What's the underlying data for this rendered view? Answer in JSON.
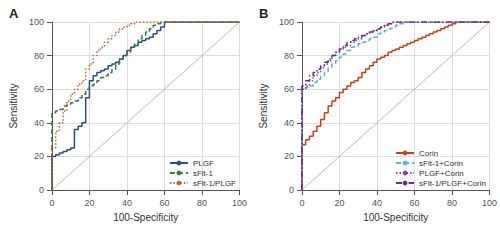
{
  "chart_data": [
    {
      "type": "step",
      "title": "A",
      "xlabel": "100-Specificity",
      "ylabel": "Sensitivity",
      "xlim": [
        0,
        100
      ],
      "ylim": [
        0,
        100
      ],
      "xticks": [
        0,
        20,
        40,
        60,
        80,
        100
      ],
      "yticks": [
        0,
        20,
        40,
        60,
        80,
        100
      ],
      "grid": true,
      "legend": "lower right",
      "series": [
        {
          "type": "line",
          "color": "#c8b89a",
          "line_style": "solid",
          "x": [
            0,
            100
          ],
          "values": [
            0,
            100
          ]
        },
        {
          "name": "PLGF",
          "color": "#2b4b8a",
          "line_style": "solid",
          "x": [
            0,
            0,
            2,
            2,
            4,
            4,
            6,
            6,
            8,
            8,
            10,
            10,
            12,
            12,
            14,
            14,
            16,
            16,
            18,
            18,
            20,
            20,
            22,
            22,
            24,
            24,
            26,
            26,
            28,
            28,
            30,
            30,
            32,
            32,
            34,
            34,
            36,
            36,
            38,
            38,
            40,
            40,
            42,
            42,
            44,
            44,
            46,
            46,
            48,
            48,
            50,
            50,
            52,
            52,
            54,
            54,
            56,
            56,
            58,
            58,
            60,
            60,
            100
          ],
          "values": [
            0,
            20,
            20,
            21,
            21,
            22,
            22,
            23,
            23,
            24,
            24,
            25,
            25,
            36,
            36,
            38,
            38,
            40,
            40,
            55,
            55,
            65,
            65,
            68,
            68,
            70,
            70,
            71,
            71,
            72,
            72,
            74,
            74,
            75,
            75,
            76,
            76,
            78,
            78,
            80,
            80,
            83,
            83,
            85,
            85,
            86,
            86,
            88,
            88,
            89,
            89,
            90,
            90,
            91,
            91,
            93,
            93,
            95,
            95,
            97,
            97,
            100,
            100
          ]
        },
        {
          "name": "sFlt-1",
          "color": "#3a7a3a",
          "line_style": "dashed",
          "x": [
            0,
            0,
            2,
            2,
            4,
            4,
            6,
            6,
            8,
            8,
            10,
            10,
            12,
            12,
            14,
            14,
            16,
            16,
            18,
            18,
            20,
            20,
            22,
            22,
            24,
            24,
            26,
            26,
            28,
            28,
            30,
            30,
            32,
            32,
            34,
            34,
            36,
            36,
            38,
            38,
            40,
            40,
            42,
            42,
            44,
            44,
            46,
            46,
            48,
            48,
            50,
            50,
            52,
            52,
            54,
            54,
            56,
            56,
            58,
            58,
            60,
            60,
            100
          ],
          "values": [
            0,
            46,
            46,
            47,
            47,
            48,
            48,
            50,
            50,
            51,
            51,
            52,
            52,
            53,
            53,
            55,
            55,
            57,
            57,
            60,
            60,
            62,
            62,
            63,
            63,
            65,
            65,
            67,
            67,
            68,
            68,
            70,
            70,
            72,
            72,
            75,
            75,
            78,
            78,
            80,
            80,
            82,
            82,
            85,
            85,
            87,
            87,
            90,
            90,
            92,
            92,
            94,
            94,
            96,
            96,
            98,
            98,
            99,
            99,
            100,
            100,
            100,
            100
          ]
        },
        {
          "name": "sFlt-1/PLGF",
          "color": "#c8622a",
          "line_style": "dotted",
          "x": [
            0,
            0,
            2,
            2,
            4,
            4,
            6,
            6,
            8,
            8,
            10,
            10,
            12,
            12,
            14,
            14,
            16,
            16,
            18,
            18,
            20,
            20,
            22,
            22,
            24,
            24,
            26,
            26,
            28,
            28,
            30,
            30,
            32,
            32,
            34,
            34,
            36,
            36,
            38,
            38,
            40,
            40,
            42,
            42,
            44,
            44,
            46,
            46,
            48,
            48,
            50,
            50,
            52,
            52,
            54,
            54,
            56,
            56,
            58,
            58,
            100
          ],
          "values": [
            0,
            25,
            25,
            35,
            35,
            40,
            40,
            47,
            47,
            53,
            53,
            57,
            57,
            60,
            60,
            63,
            63,
            65,
            65,
            72,
            72,
            75,
            75,
            80,
            80,
            83,
            83,
            85,
            85,
            88,
            88,
            90,
            90,
            92,
            92,
            94,
            94,
            96,
            96,
            97,
            97,
            98,
            98,
            99,
            99,
            100,
            100,
            100,
            100,
            100,
            100,
            100,
            100,
            100,
            100,
            100,
            100,
            100,
            100,
            100,
            100
          ]
        }
      ]
    },
    {
      "type": "step",
      "title": "B",
      "xlabel": "100-Specificity",
      "ylabel": "Sensitivity",
      "xlim": [
        0,
        100
      ],
      "ylim": [
        0,
        100
      ],
      "xticks": [
        0,
        20,
        40,
        60,
        80,
        100
      ],
      "yticks": [
        0,
        20,
        40,
        60,
        80,
        100
      ],
      "grid": true,
      "legend": "lower right",
      "series": [
        {
          "type": "line",
          "color": "#c8b89a",
          "line_style": "solid",
          "x": [
            0,
            100
          ],
          "values": [
            0,
            100
          ]
        },
        {
          "name": "Corin",
          "color": "#c8401a",
          "line_style": "solid",
          "x": [
            0,
            0,
            2,
            2,
            4,
            4,
            6,
            6,
            8,
            8,
            10,
            10,
            12,
            12,
            14,
            14,
            16,
            16,
            18,
            18,
            20,
            20,
            22,
            22,
            24,
            24,
            26,
            26,
            28,
            28,
            30,
            30,
            32,
            32,
            34,
            34,
            36,
            36,
            38,
            38,
            40,
            40,
            42,
            42,
            44,
            44,
            46,
            46,
            48,
            48,
            50,
            50,
            52,
            52,
            54,
            54,
            56,
            56,
            58,
            58,
            60,
            60,
            62,
            62,
            64,
            64,
            66,
            66,
            68,
            68,
            70,
            70,
            72,
            72,
            74,
            74,
            76,
            76,
            78,
            78,
            80,
            80,
            82,
            82,
            84,
            84,
            86,
            86,
            88,
            88,
            90,
            90,
            100
          ],
          "values": [
            0,
            27,
            27,
            30,
            30,
            32,
            32,
            35,
            35,
            38,
            38,
            42,
            42,
            46,
            46,
            50,
            50,
            53,
            53,
            55,
            55,
            58,
            58,
            60,
            60,
            62,
            62,
            64,
            64,
            65,
            65,
            67,
            67,
            70,
            70,
            72,
            72,
            74,
            74,
            76,
            76,
            78,
            78,
            79,
            79,
            80,
            80,
            82,
            82,
            83,
            83,
            84,
            84,
            85,
            85,
            86,
            86,
            87,
            87,
            88,
            88,
            89,
            89,
            90,
            90,
            91,
            91,
            92,
            92,
            93,
            93,
            94,
            94,
            95,
            95,
            96,
            96,
            97,
            97,
            98,
            98,
            99,
            99,
            100,
            100,
            100,
            100,
            100,
            100,
            100,
            100,
            100,
            100
          ]
        },
        {
          "name": "sFlt-1+Corin",
          "color": "#5bb5d5",
          "line_style": "dashed",
          "x": [
            0,
            0,
            2,
            2,
            4,
            4,
            6,
            6,
            8,
            8,
            10,
            10,
            12,
            12,
            14,
            14,
            16,
            16,
            18,
            18,
            20,
            20,
            22,
            22,
            24,
            24,
            26,
            26,
            28,
            28,
            30,
            30,
            32,
            32,
            34,
            34,
            36,
            36,
            38,
            38,
            40,
            40,
            42,
            42,
            44,
            44,
            46,
            46,
            48,
            48,
            50,
            50,
            52,
            52,
            54,
            54,
            56,
            56,
            58,
            58,
            60,
            60,
            62,
            62,
            64,
            64,
            66,
            66,
            68,
            68,
            70,
            70,
            72,
            72,
            74,
            74,
            76,
            76,
            100
          ],
          "values": [
            0,
            60,
            60,
            61,
            61,
            62,
            62,
            64,
            64,
            66,
            66,
            68,
            68,
            70,
            70,
            73,
            73,
            75,
            75,
            77,
            77,
            79,
            79,
            81,
            81,
            83,
            83,
            85,
            85,
            86,
            86,
            87,
            87,
            88,
            88,
            89,
            89,
            90,
            90,
            91,
            91,
            93,
            93,
            94,
            94,
            95,
            95,
            96,
            96,
            97,
            97,
            98,
            98,
            99,
            99,
            100,
            100,
            100,
            100,
            100,
            100,
            100,
            100,
            100,
            100,
            100,
            100,
            100,
            100,
            100,
            100,
            100,
            100,
            100,
            100,
            100,
            100,
            100,
            100
          ]
        },
        {
          "name": "PLGF+Corin",
          "color": "#9b3da0",
          "line_style": "dotted",
          "x": [
            0,
            0,
            2,
            2,
            4,
            4,
            6,
            6,
            8,
            8,
            10,
            10,
            12,
            12,
            14,
            14,
            16,
            16,
            18,
            18,
            20,
            20,
            22,
            22,
            24,
            24,
            26,
            26,
            28,
            28,
            30,
            30,
            32,
            32,
            34,
            34,
            36,
            36,
            38,
            38,
            40,
            40,
            42,
            42,
            44,
            44,
            46,
            46,
            48,
            48,
            50,
            50,
            52,
            52,
            54,
            54,
            56,
            56,
            58,
            58,
            60,
            60,
            62,
            62,
            100
          ],
          "values": [
            0,
            60,
            60,
            62,
            62,
            65,
            65,
            68,
            68,
            70,
            70,
            73,
            73,
            75,
            75,
            77,
            77,
            80,
            80,
            82,
            82,
            84,
            84,
            85,
            85,
            86,
            86,
            88,
            88,
            89,
            89,
            90,
            90,
            92,
            92,
            93,
            93,
            94,
            94,
            95,
            95,
            96,
            96,
            97,
            97,
            98,
            98,
            99,
            99,
            100,
            100,
            100,
            100,
            100,
            100,
            100,
            100,
            100,
            100,
            100,
            100,
            100,
            100,
            100,
            100
          ]
        },
        {
          "name": "sFlt-1/PLGF+Corin",
          "color": "#5a3090",
          "line_style": "dashdot",
          "x": [
            0,
            0,
            2,
            2,
            4,
            4,
            6,
            6,
            8,
            8,
            10,
            10,
            12,
            12,
            14,
            14,
            16,
            16,
            18,
            18,
            20,
            20,
            22,
            22,
            24,
            24,
            26,
            26,
            28,
            28,
            30,
            30,
            32,
            32,
            34,
            34,
            36,
            36,
            38,
            38,
            40,
            40,
            42,
            42,
            44,
            44,
            46,
            46,
            48,
            48,
            50,
            50,
            52,
            52,
            54,
            54,
            56,
            56,
            58,
            58,
            60,
            60,
            100
          ],
          "values": [
            0,
            62,
            62,
            65,
            65,
            68,
            68,
            70,
            70,
            72,
            72,
            74,
            74,
            76,
            76,
            78,
            78,
            80,
            80,
            82,
            82,
            84,
            84,
            86,
            86,
            88,
            88,
            89,
            89,
            90,
            90,
            91,
            91,
            92,
            92,
            93,
            93,
            94,
            94,
            95,
            95,
            96,
            96,
            97,
            97,
            98,
            98,
            99,
            99,
            100,
            100,
            100,
            100,
            100,
            100,
            100,
            100,
            100,
            100,
            100,
            100,
            100,
            100
          ]
        }
      ]
    }
  ]
}
